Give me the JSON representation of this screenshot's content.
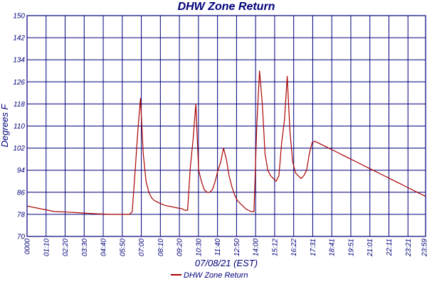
{
  "chart_data": {
    "type": "line",
    "title": "DHW Zone Return",
    "xlabel": "07/08/21 (EST)",
    "ylabel": "Degrees F",
    "ylim": [
      70,
      150
    ],
    "yticks": [
      70,
      78,
      86,
      94,
      102,
      110,
      118,
      126,
      134,
      142,
      150
    ],
    "xlim": [
      0,
      1440
    ],
    "xtick_labels": [
      "0000",
      "01:10",
      "02:20",
      "03:30",
      "04:40",
      "05:50",
      "07:00",
      "08:10",
      "09:20",
      "10:30",
      "11:40",
      "12:50",
      "14:00",
      "15:12",
      "16:22",
      "17:31",
      "18:41",
      "19:51",
      "21:01",
      "22:11",
      "23:21",
      "23:59"
    ],
    "grid": true,
    "legend_position": "bottom-center",
    "colors": {
      "series": "#aa0000",
      "grid": "#00007a",
      "frame": "#00007a",
      "text": "#00007a"
    },
    "series": [
      {
        "name": "DHW Zone Return",
        "x": [
          0,
          50,
          100,
          150,
          200,
          250,
          300,
          320,
          330,
          340,
          350,
          360,
          370,
          380,
          390,
          400,
          410,
          420,
          430,
          440,
          450,
          460,
          470,
          480,
          490,
          500,
          510,
          520,
          530,
          540,
          550,
          560,
          570,
          580,
          590,
          600,
          610,
          620,
          630,
          640,
          650,
          660,
          670,
          680,
          690,
          700,
          710,
          720,
          730,
          740,
          750,
          760,
          770,
          780,
          790,
          800,
          810,
          820,
          830,
          840,
          850,
          860,
          870,
          880,
          890,
          900,
          910,
          920,
          930,
          940,
          950,
          960,
          970,
          980,
          990,
          1000,
          1010,
          1020,
          1030,
          1040,
          1050,
          1060,
          1070,
          1080,
          1090,
          1100,
          1110,
          1120,
          1130,
          1140,
          1150,
          1160,
          1170,
          1180,
          1190,
          1200,
          1210,
          1220,
          1230,
          1240,
          1250,
          1260,
          1270,
          1280,
          1290,
          1300,
          1310,
          1320,
          1330,
          1340,
          1350,
          1360,
          1370,
          1380,
          1390,
          1400,
          1410,
          1420,
          1430,
          1440
        ],
        "y": [
          81,
          80,
          79,
          78.8,
          78.5,
          78.2,
          78,
          78,
          78,
          78,
          78,
          78,
          78,
          79,
          93,
          108,
          120,
          100,
          90,
          86,
          84,
          83,
          82.5,
          82,
          81.6,
          81.2,
          81,
          80.8,
          80.6,
          80.4,
          80.2,
          80,
          79.5,
          79.5,
          95,
          105,
          118,
          94,
          90,
          87,
          86,
          86,
          87,
          90,
          94,
          97,
          102,
          98,
          92,
          88,
          85,
          83,
          82,
          81,
          80,
          79.5,
          79,
          79,
          110,
          130,
          118,
          100,
          94,
          92,
          91,
          90,
          92,
          104,
          112,
          128,
          108,
          97,
          93,
          92,
          91,
          92,
          94,
          100,
          104,
          104.5,
          104,
          103.5,
          103,
          102.5,
          102,
          101.5,
          101,
          100.5,
          100,
          99.5,
          99,
          98.5,
          98,
          97.5,
          97,
          96.5,
          96,
          95.5,
          95,
          94.5,
          94,
          93.5,
          93,
          92.5,
          92,
          91.5,
          91,
          90.5,
          90,
          89.5,
          89,
          88.5,
          88,
          87.5,
          87,
          86.5,
          86,
          85.5,
          85,
          84.5
        ]
      }
    ]
  }
}
